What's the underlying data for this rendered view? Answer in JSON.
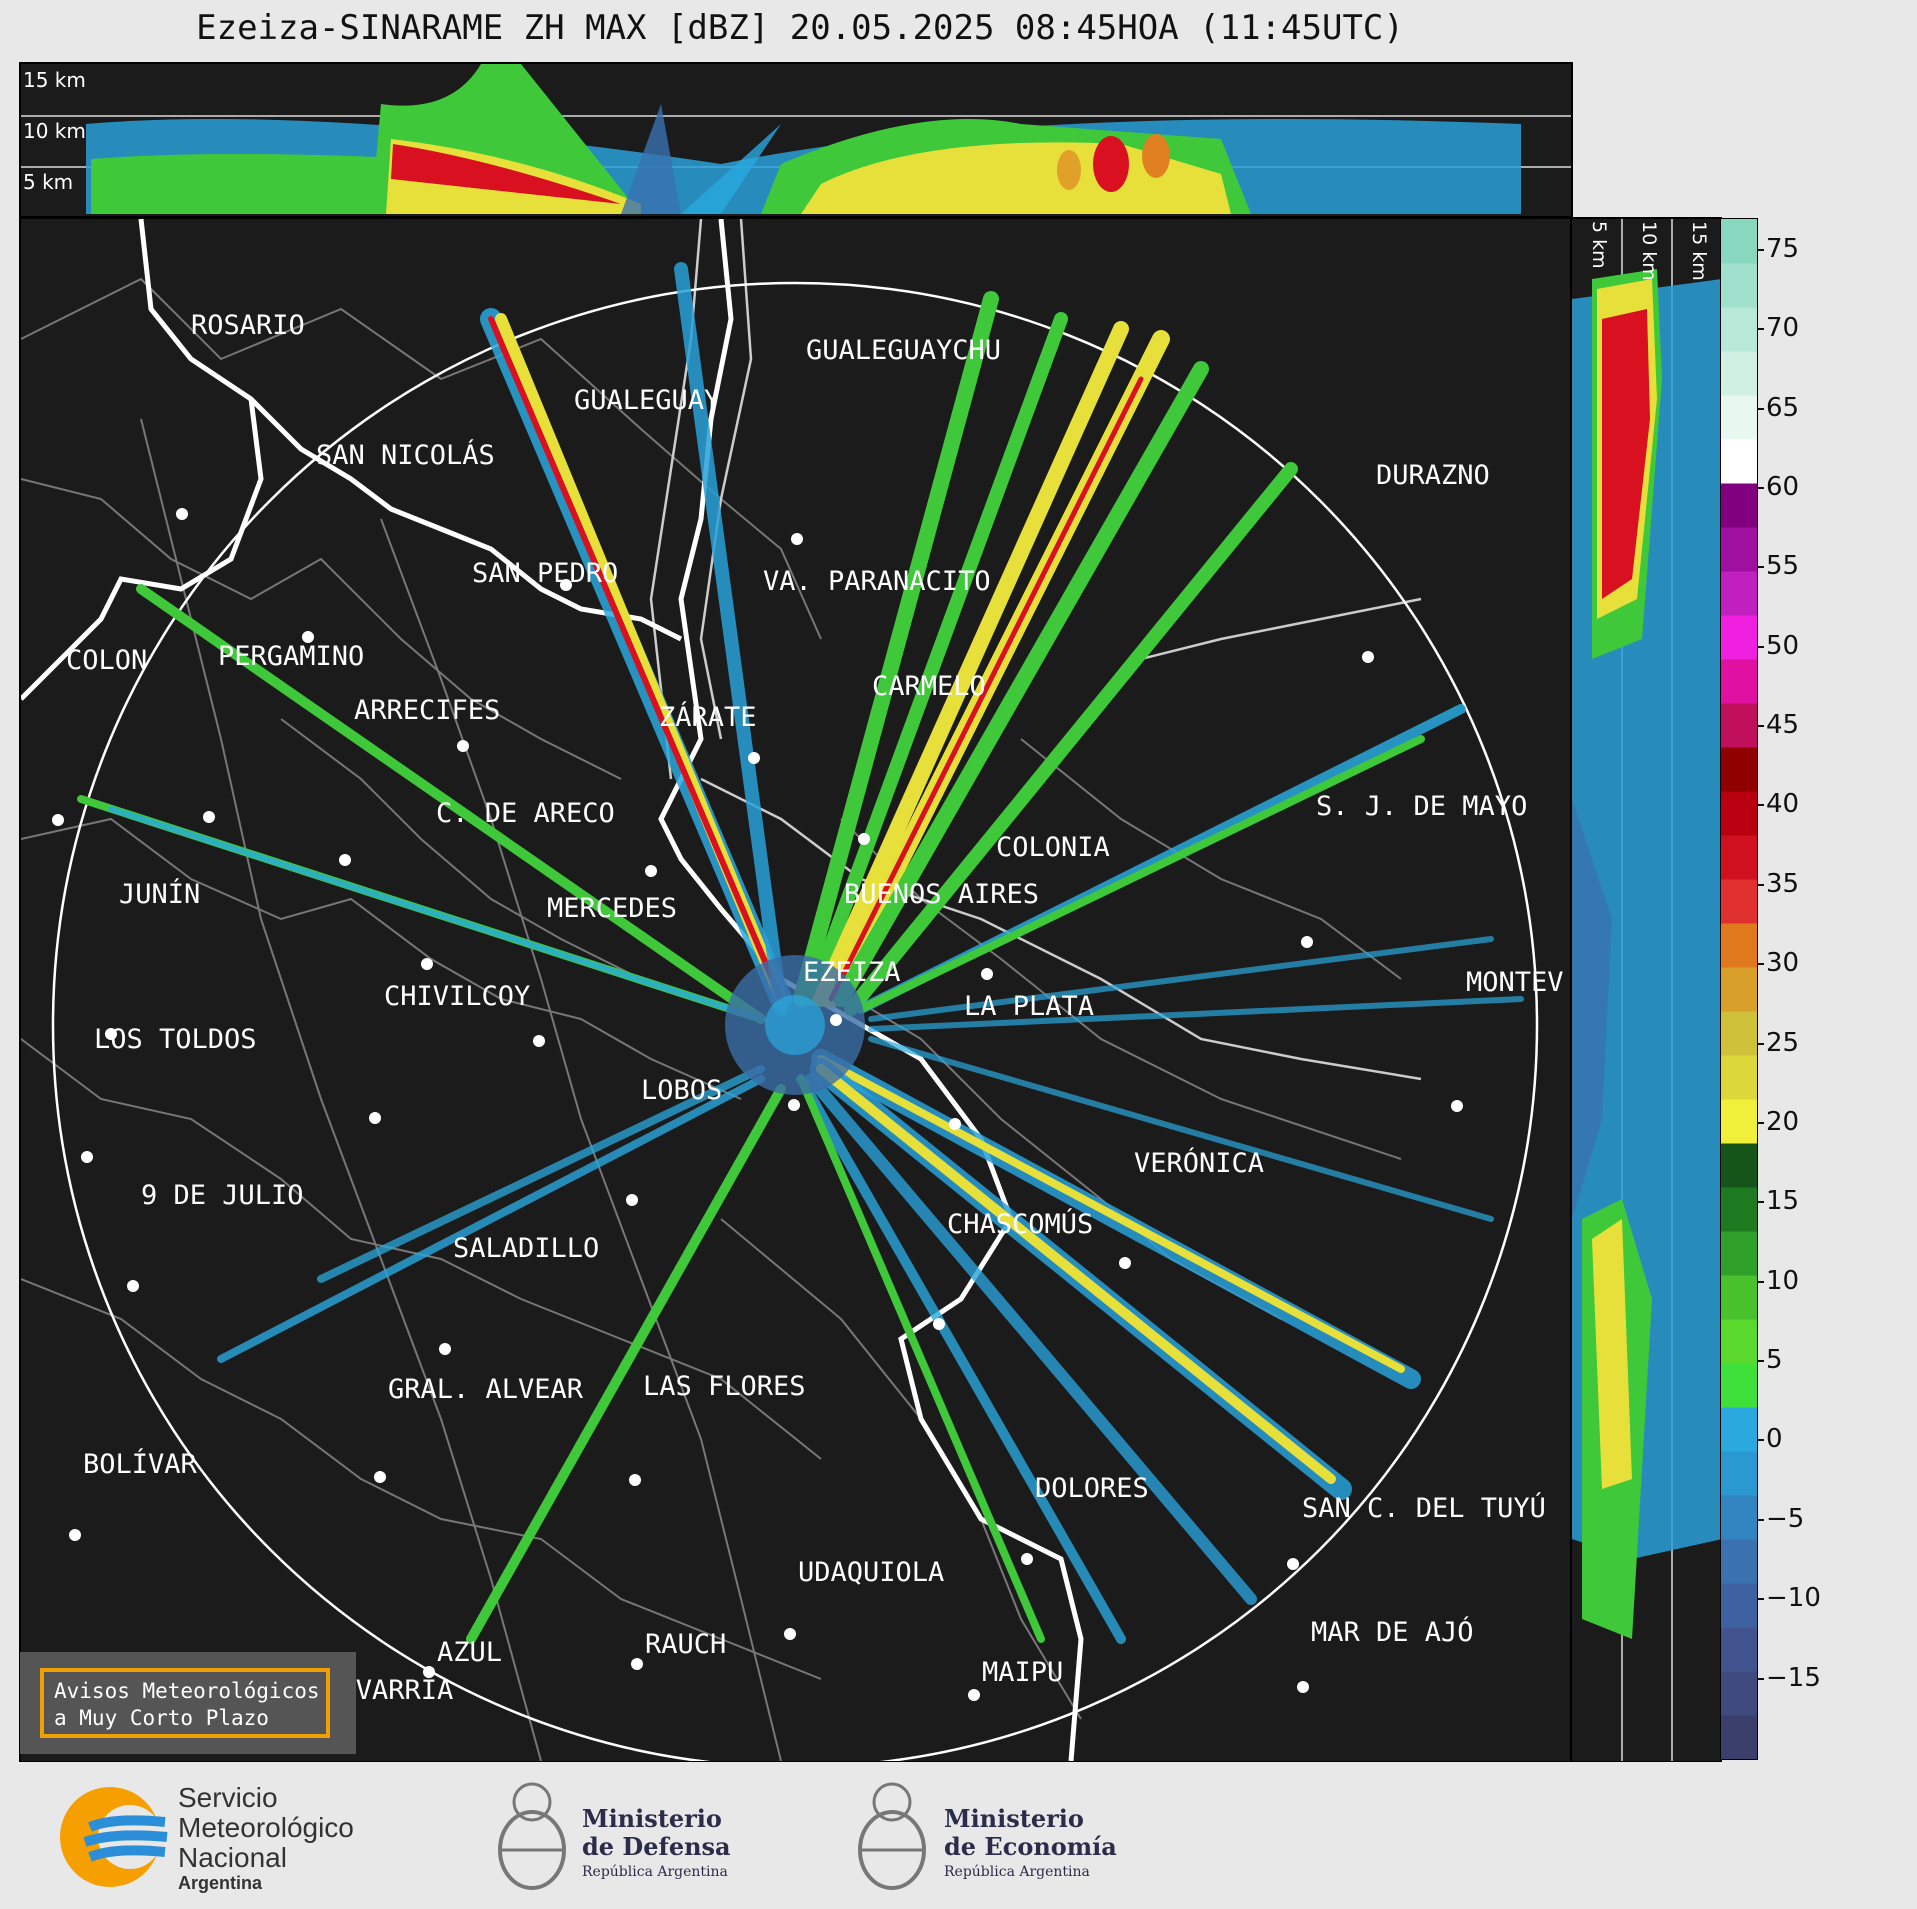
{
  "title": "Ezeiza-SINARAME ZH MAX [dBZ] 20.05.2025 08:45HOA (11:45UTC)",
  "top_panel": {
    "alt_labels": [
      "15 km",
      "10 km",
      "5 km"
    ]
  },
  "side_panel": {
    "alt_labels": [
      "5 km",
      "10 km",
      "15 km"
    ]
  },
  "cities": [
    "ROSARIO",
    "GUALEGUAYCHU",
    "GUALEGUAY",
    "SAN NICOLÁS",
    "DURAZNO",
    "SAN PEDRO",
    "VA. PARANACITO",
    "COLON",
    "PERGAMINO",
    "CARMELO",
    "ARRECIFES",
    "ZÁRATE",
    "S. J. DE MAYO",
    "C. DE ARECO",
    "COLONIA",
    "BUENOS AIRES",
    "JUNÍN",
    "MERCEDES",
    "MONTEV",
    "EZEIZA",
    "CHIVILCOY",
    "LA PLATA",
    "LOS TOLDOS",
    "LOBOS",
    "VERÓNICA",
    "9 DE JULIO",
    "CHASCOMÚS",
    "SALADILLO",
    "GRAL. ALVEAR",
    "LAS FLORES",
    "BOLÍVAR",
    "DOLORES",
    "SAN C. DEL TUYÚ",
    "UDAQUIOLA",
    "AZUL",
    "RAUCH",
    "MAR DE AJÓ",
    "OLAVARRÍA",
    "MAIPU"
  ],
  "colorbar": {
    "ticks": [
      "75",
      "70",
      "65",
      "60",
      "55",
      "50",
      "45",
      "40",
      "35",
      "30",
      "25",
      "20",
      "15",
      "10",
      "5",
      "0",
      "−5",
      "−10",
      "−15"
    ],
    "colors": [
      "#3b3f6b",
      "#3f4a7e",
      "#41548f",
      "#3e62a0",
      "#3a72b0",
      "#3184c0",
      "#2a98d1",
      "#29a9de",
      "#3ee03a",
      "#5ad82b",
      "#49c12c",
      "#2fa02a",
      "#1e7a20",
      "#16551a",
      "#f0f03a",
      "#dcd83a",
      "#cfc23a",
      "#d8a02a",
      "#e0781e",
      "#e03030",
      "#d0101e",
      "#b80010",
      "#900000",
      "#c0105c",
      "#e010a0",
      "#f020e0",
      "#c020c0",
      "#a010a0",
      "#800080",
      "#ffffff",
      "#e8f8f0",
      "#d0f0e4",
      "#b8e8d8",
      "#a0e0cc",
      "#88d8c0"
    ]
  },
  "alert": {
    "line1": "Avisos Meteorológicos",
    "line2": "a Muy Corto Plazo"
  },
  "footer": {
    "smn_line1": "Servicio",
    "smn_line2": "Meteorológico",
    "smn_line3": "Nacional",
    "smn_line4": "Argentina",
    "defensa_line1": "Ministerio",
    "defensa_line2": "de Defensa",
    "defensa_sub": "República Argentina",
    "economia_line1": "Ministerio",
    "economia_line2": "de Economía",
    "economia_sub": "República Argentina"
  }
}
